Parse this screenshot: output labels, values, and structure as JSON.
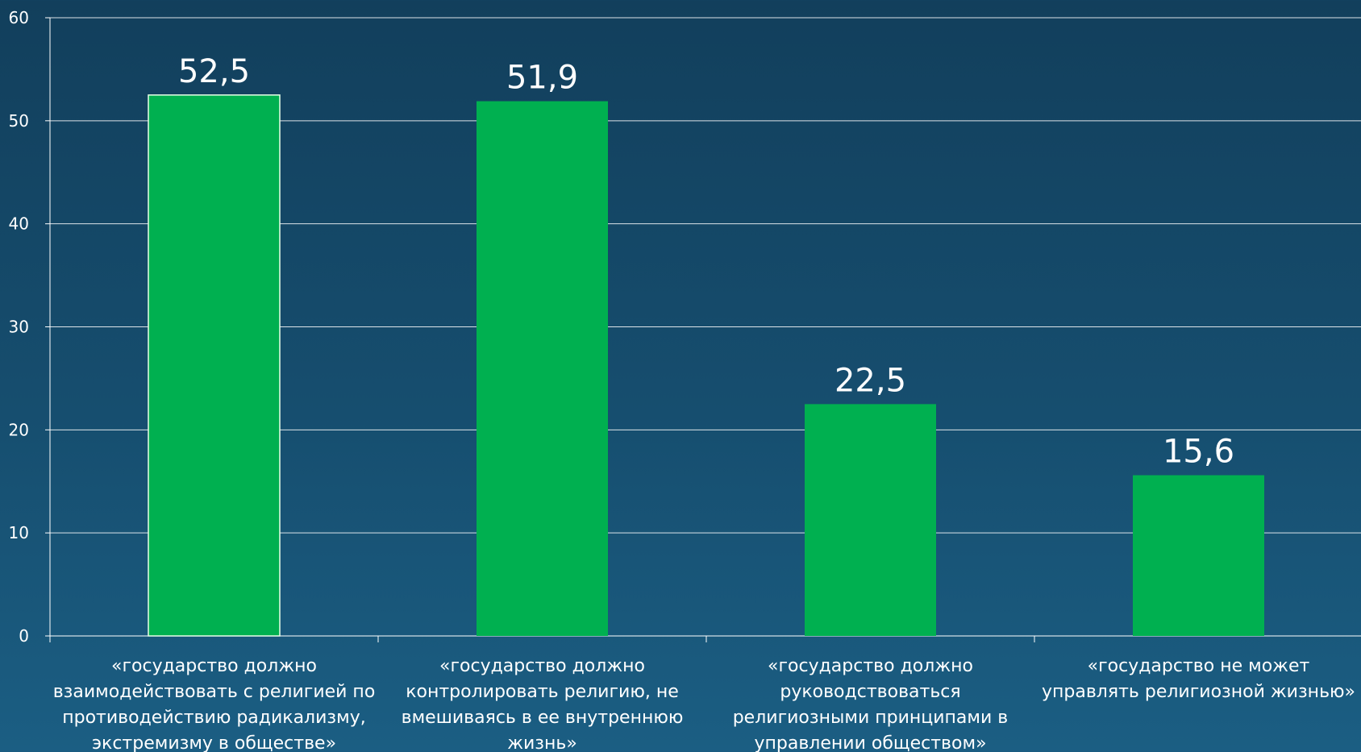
{
  "colors": {
    "bar": "#00b050",
    "background_top": "#123f5c",
    "background_bottom": "#1b5e83",
    "grid": "#ffffff",
    "text": "#ffffff"
  },
  "chart_data": {
    "type": "bar",
    "title": "",
    "xlabel": "",
    "ylabel": "",
    "ylim": [
      0,
      60
    ],
    "yticks": [
      "0",
      "10",
      "20",
      "30",
      "40",
      "50",
      "60"
    ],
    "grid": true,
    "categories": [
      "«государство должно взаимодействовать с религией по противодействию радикализму, экстремизму в обществе»",
      "«государство должно контролировать религию, не вмешиваясь в ее внутреннюю жизнь»",
      "«государство должно руководствоваться религиозными принципами в управлении обществом»",
      "«государство не может управлять религиозной жизнью»"
    ],
    "values": [
      52.5,
      51.9,
      22.5,
      15.6
    ],
    "data_labels": [
      "52,5",
      "51,9",
      "22,5",
      "15,6"
    ]
  }
}
